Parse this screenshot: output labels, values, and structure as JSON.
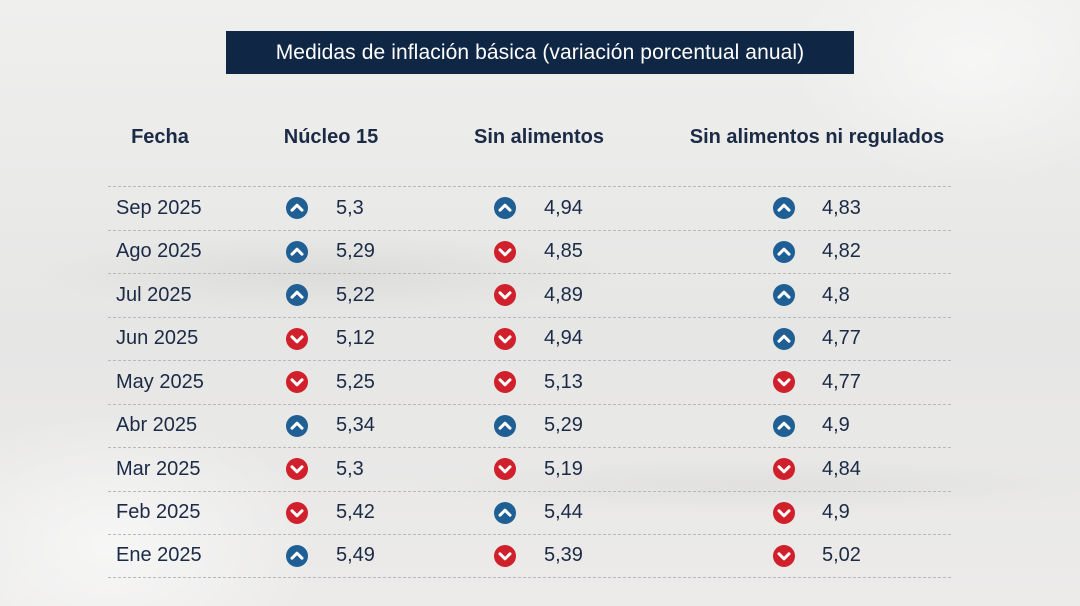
{
  "title": "Medidas de inflación básica (variación porcentual anual)",
  "colors": {
    "title_bg": "#0f2645",
    "up": "#1f5f94",
    "down": "#d0202b",
    "text": "#1b2a45"
  },
  "columns": [
    "Fecha",
    "Núcleo 15",
    "Sin alimentos",
    "Sin alimentos ni regulados"
  ],
  "rows": [
    {
      "fecha": "Sep 2025",
      "nucleo15": {
        "value": "5,3",
        "dir": "up"
      },
      "sin_alimentos": {
        "value": "4,94",
        "dir": "up"
      },
      "sin_alimentos_ni_regulados": {
        "value": "4,83",
        "dir": "up"
      }
    },
    {
      "fecha": "Ago 2025",
      "nucleo15": {
        "value": "5,29",
        "dir": "up"
      },
      "sin_alimentos": {
        "value": "4,85",
        "dir": "down"
      },
      "sin_alimentos_ni_regulados": {
        "value": "4,82",
        "dir": "up"
      }
    },
    {
      "fecha": "Jul 2025",
      "nucleo15": {
        "value": "5,22",
        "dir": "up"
      },
      "sin_alimentos": {
        "value": "4,89",
        "dir": "down"
      },
      "sin_alimentos_ni_regulados": {
        "value": "4,8",
        "dir": "up"
      }
    },
    {
      "fecha": "Jun 2025",
      "nucleo15": {
        "value": "5,12",
        "dir": "down"
      },
      "sin_alimentos": {
        "value": "4,94",
        "dir": "down"
      },
      "sin_alimentos_ni_regulados": {
        "value": "4,77",
        "dir": "up"
      }
    },
    {
      "fecha": "May 2025",
      "nucleo15": {
        "value": "5,25",
        "dir": "down"
      },
      "sin_alimentos": {
        "value": "5,13",
        "dir": "down"
      },
      "sin_alimentos_ni_regulados": {
        "value": "4,77",
        "dir": "down"
      }
    },
    {
      "fecha": "Abr 2025",
      "nucleo15": {
        "value": "5,34",
        "dir": "up"
      },
      "sin_alimentos": {
        "value": "5,29",
        "dir": "up"
      },
      "sin_alimentos_ni_regulados": {
        "value": "4,9",
        "dir": "up"
      }
    },
    {
      "fecha": "Mar 2025",
      "nucleo15": {
        "value": "5,3",
        "dir": "down"
      },
      "sin_alimentos": {
        "value": "5,19",
        "dir": "down"
      },
      "sin_alimentos_ni_regulados": {
        "value": "4,84",
        "dir": "down"
      }
    },
    {
      "fecha": "Feb 2025",
      "nucleo15": {
        "value": "5,42",
        "dir": "down"
      },
      "sin_alimentos": {
        "value": "5,44",
        "dir": "up"
      },
      "sin_alimentos_ni_regulados": {
        "value": "4,9",
        "dir": "down"
      }
    },
    {
      "fecha": "Ene 2025",
      "nucleo15": {
        "value": "5,49",
        "dir": "up"
      },
      "sin_alimentos": {
        "value": "5,39",
        "dir": "down"
      },
      "sin_alimentos_ni_regulados": {
        "value": "5,02",
        "dir": "down"
      }
    }
  ]
}
